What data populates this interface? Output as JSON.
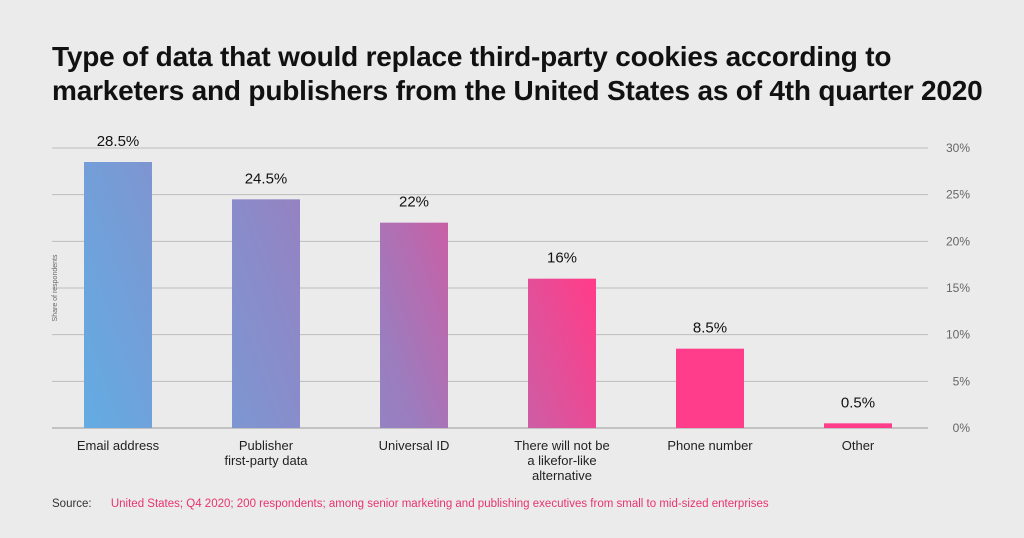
{
  "title": "Type of data that would replace third-party cookies according to marketers and publishers from the United States as of 4th quarter 2020",
  "source_label": "Source:",
  "source_text": "United States; Q4 2020; 200 respondents; among senior marketing and publishing executives from small to mid-sized enterprises",
  "colors": {
    "background": "#ebebeb",
    "blue": "#6aa8dc",
    "purple": "#9b7dbe",
    "pink": "#ff3d8a",
    "grid": "#bdbdbd",
    "source_accent": "#e8336d"
  },
  "chart_data": {
    "type": "bar",
    "categories": [
      "Email address",
      "Publisher\nfirst-party data",
      "Universal ID",
      "There will not be\na likefor-like\nalternative",
      "Phone number",
      "Other"
    ],
    "values": [
      28.5,
      24.5,
      22,
      16,
      8.5,
      0.5
    ],
    "data_labels": [
      "28.5%",
      "24.5%",
      "22%",
      "16%",
      "8.5%",
      "0.5%"
    ],
    "ylabel": "Share of respondents",
    "ylim": [
      0,
      30
    ],
    "yticks": [
      "0%",
      "5%",
      "10%",
      "15%",
      "20%",
      "25%",
      "30%"
    ],
    "y_axis_side": "right",
    "grid": true,
    "legend": "none"
  }
}
